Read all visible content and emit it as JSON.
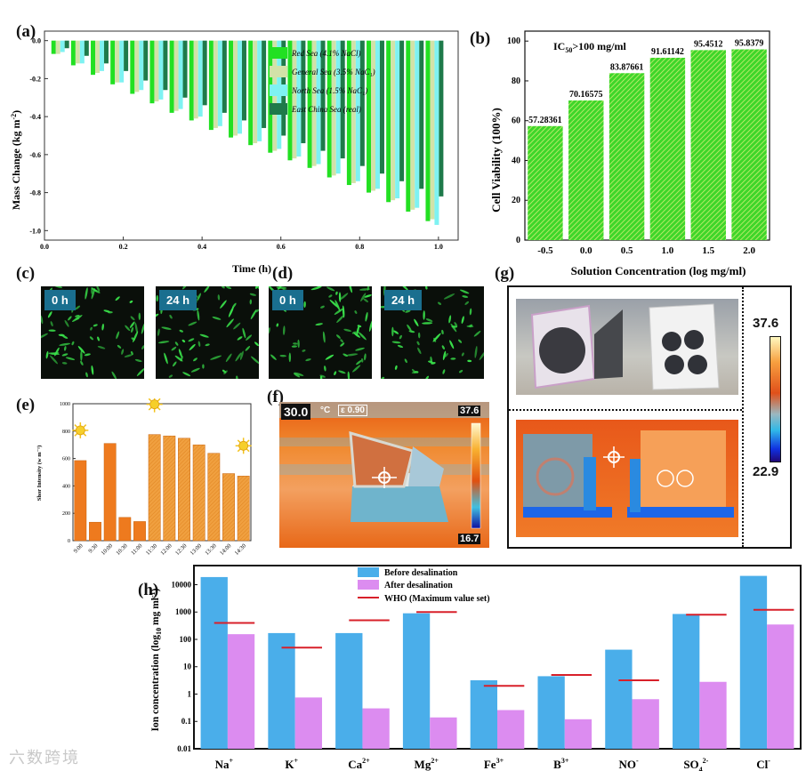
{
  "labels": {
    "a": "(a)",
    "b": "(b)",
    "c": "(c)",
    "d": "(d)",
    "e": "(e)",
    "f": "(f)",
    "g": "(g)",
    "h": "(h)"
  },
  "chart_data": [
    {
      "id": "a",
      "type": "bar",
      "xlabel": "Time (h)",
      "ylabel": "Mass Change (kg m⁻²)",
      "ylabel_main": "Mass Change (kg m",
      "ylabel_sup": "-2",
      "ylabel_end": ")",
      "xlim": [
        0,
        1.05
      ],
      "ylim": [
        -1.05,
        0.05
      ],
      "xticks": [
        "0.0",
        "0.2",
        "0.4",
        "0.6",
        "0.8",
        "1.0"
      ],
      "xtick_values": [
        0,
        0.2,
        0.4,
        0.6,
        0.8,
        1.0
      ],
      "yticks": [
        "0.0",
        "-0.2",
        "-0.4",
        "-0.6",
        "-0.8",
        "-1.0"
      ],
      "ytick_values": [
        0,
        -0.2,
        -0.4,
        -0.6,
        -0.8,
        -1.0
      ],
      "x": [
        0.04,
        0.09,
        0.14,
        0.19,
        0.24,
        0.29,
        0.34,
        0.39,
        0.44,
        0.49,
        0.54,
        0.59,
        0.64,
        0.69,
        0.74,
        0.79,
        0.84,
        0.89,
        0.94,
        0.99
      ],
      "series": [
        {
          "name": "Red Sea (4.1% NaCl)",
          "color": "#22e022",
          "values": [
            -0.07,
            -0.13,
            -0.18,
            -0.23,
            -0.28,
            -0.33,
            -0.38,
            -0.42,
            -0.47,
            -0.51,
            -0.55,
            -0.59,
            -0.63,
            -0.67,
            -0.72,
            -0.76,
            -0.8,
            -0.85,
            -0.9,
            -0.95
          ]
        },
        {
          "name": "General Sea (3.5% NaCl)",
          "color": "#d2e2a8",
          "values": [
            -0.07,
            -0.12,
            -0.17,
            -0.22,
            -0.27,
            -0.32,
            -0.37,
            -0.41,
            -0.46,
            -0.5,
            -0.54,
            -0.58,
            -0.62,
            -0.66,
            -0.71,
            -0.75,
            -0.79,
            -0.84,
            -0.89,
            -0.94
          ]
        },
        {
          "name": "North Sea (1.5% NaCl)",
          "color": "#7ef2f2",
          "values": [
            -0.06,
            -0.12,
            -0.16,
            -0.22,
            -0.26,
            -0.31,
            -0.36,
            -0.4,
            -0.45,
            -0.49,
            -0.53,
            -0.57,
            -0.61,
            -0.65,
            -0.7,
            -0.74,
            -0.78,
            -0.83,
            -0.88,
            -0.97
          ]
        },
        {
          "name": "East China Sea (real)",
          "color": "#1e7a4a",
          "values": [
            -0.04,
            -0.08,
            -0.12,
            -0.16,
            -0.21,
            -0.26,
            -0.3,
            -0.34,
            -0.38,
            -0.42,
            -0.46,
            -0.5,
            -0.54,
            -0.58,
            -0.62,
            -0.66,
            -0.7,
            -0.74,
            -0.78,
            -0.82
          ]
        }
      ],
      "legend": [
        "Red Sea  (4.1% NaCl)",
        "General Sea (3.5% NaC₁)",
        "North Sea (1.5% NaC₁)",
        "East China Sea (real)"
      ],
      "legend_position": "top-right"
    },
    {
      "id": "b",
      "type": "bar",
      "title": "IC50>100 mg/ml",
      "title_main": "IC",
      "title_sub": "50",
      "title_end": ">100 mg/ml",
      "xlabel": "Solution Concentration (log mg/ml)",
      "ylabel": "Cell Viability (100%)",
      "categories": [
        "-0.5",
        "0.0",
        "0.5",
        "1.0",
        "1.5",
        "2.0"
      ],
      "values": [
        57.28361,
        70.16575,
        83.87661,
        91.61142,
        95.4512,
        95.8379
      ],
      "value_labels": [
        "57.28361",
        "70.16575",
        "83.87661",
        "91.61142",
        "95.4512",
        "95.8379"
      ],
      "ylim": [
        0,
        105
      ],
      "yticks": [
        "0",
        "20",
        "40",
        "60",
        "80",
        "100"
      ],
      "ytick_values": [
        0,
        20,
        40,
        60,
        80,
        100
      ]
    },
    {
      "id": "e",
      "type": "bar",
      "ylabel": "Shor Intensity (w m⁻¹)",
      "categories": [
        "9:00",
        "9:30",
        "10:00",
        "10:30",
        "11:00",
        "11:30",
        "12:00",
        "12:30",
        "13:00",
        "13:30",
        "14:00",
        "14:30"
      ],
      "values": [
        585,
        135,
        710,
        170,
        140,
        775,
        765,
        748,
        700,
        638,
        490,
        472
      ],
      "ylim": [
        0,
        1000
      ],
      "yticks": [
        "0",
        "200",
        "400",
        "600",
        "800",
        "1000"
      ],
      "ytick_values": [
        0,
        200,
        400,
        600,
        800,
        1000
      ],
      "sun_after": [
        "9:00",
        "11:30",
        "14:30"
      ]
    },
    {
      "id": "h",
      "type": "bar",
      "scale": "log",
      "ylabel": "Ion concentration (log10 mg ml⁻¹)",
      "ylabel_main": "Ion concentration (log",
      "ylabel_sub": "10",
      "ylabel_mid": " mg ml",
      "ylabel_sup": "-1",
      "ylabel_end": ")",
      "ylim": [
        0.01,
        50000
      ],
      "yticks": [
        "0.01",
        "0.1",
        "1",
        "10",
        "100",
        "1000",
        "10000"
      ],
      "ytick_values": [
        0.01,
        0.1,
        1,
        10,
        100,
        1000,
        10000
      ],
      "categories": [
        {
          "base": "Na",
          "sup": "+",
          "sub": ""
        },
        {
          "base": "K",
          "sup": "+",
          "sub": ""
        },
        {
          "base": "Ca",
          "sup": "2+",
          "sub": ""
        },
        {
          "base": "Mg",
          "sup": "2+",
          "sub": ""
        },
        {
          "base": "Fe",
          "sup": "3+",
          "sub": ""
        },
        {
          "base": "B",
          "sup": "3+",
          "sub": ""
        },
        {
          "base": "NO",
          "sup": "-",
          "sub": ""
        },
        {
          "base": "SO",
          "sup": "2-",
          "sub": "4"
        },
        {
          "base": "Cl",
          "sup": "-",
          "sub": ""
        }
      ],
      "series": [
        {
          "name": "Before desalination",
          "color": "#4aaeea",
          "values": [
            19000,
            170,
            170,
            900,
            3.2,
            4.5,
            42,
            850,
            21000
          ]
        },
        {
          "name": "After desalination",
          "color": "#dc8cf0",
          "values": [
            155,
            0.75,
            0.3,
            0.14,
            0.26,
            0.12,
            0.65,
            2.8,
            350
          ]
        },
        {
          "name": "WHO (Maximum value set)",
          "color": "#d8202a",
          "values": [
            400,
            50,
            500,
            1000,
            2,
            5,
            3.2,
            800,
            1200
          ]
        }
      ],
      "legend_position": "top-center"
    }
  ],
  "micro": {
    "c_left": "0 h",
    "c_right": "24 h",
    "d_left": "0 h",
    "d_right": "24 h"
  },
  "thermal_f": {
    "temp": "30.0",
    "unit": "°C",
    "emissivity": "ε 0.90",
    "max": "37.6",
    "min": "16.7"
  },
  "colorbar_g": {
    "max": "37.6",
    "min": "22.9"
  },
  "watermark": "六数跨境"
}
